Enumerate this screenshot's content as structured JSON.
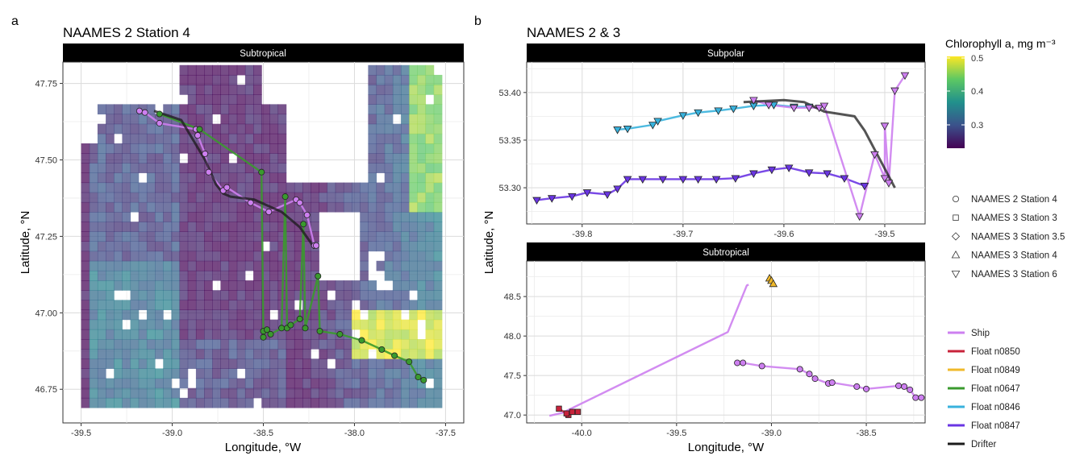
{
  "figure": {
    "panel_a_letter": "a",
    "panel_b_letter": "b",
    "panel_a_title": "NAAMES 2 Station 4",
    "panel_b_title": "NAAMES 2 & 3",
    "strip_a": "Subtropical",
    "strip_b_top": "Subpolar",
    "strip_b_bottom": "Subtropical",
    "xlabel": "Longitude, °W",
    "ylabel": "Latitude, °N"
  },
  "legend": {
    "colorbar_title": "Chlorophyll a, mg m⁻³",
    "colorbar_ticks": [
      "0.5",
      "0.4",
      "0.3"
    ],
    "shape_entries": [
      {
        "label": "NAAMES 2 Station 4",
        "shape": "circle"
      },
      {
        "label": "NAAMES 3 Station 3",
        "shape": "square"
      },
      {
        "label": "NAAMES 3 Station 3.5",
        "shape": "diamond"
      },
      {
        "label": "NAAMES 3 Station 4",
        "shape": "triangle-up"
      },
      {
        "label": "NAAMES 3 Station 6",
        "shape": "triangle-down"
      }
    ],
    "line_entries": [
      {
        "label": "Ship",
        "color": "#cd7ff0"
      },
      {
        "label": "Float n0850",
        "color": "#c8233b"
      },
      {
        "label": "Float n0849",
        "color": "#f0b92a"
      },
      {
        "label": "Float n0647",
        "color": "#3a9a2e"
      },
      {
        "label": "Float n0846",
        "color": "#38b2dd"
      },
      {
        "label": "Float n0847",
        "color": "#6a35e3"
      },
      {
        "label": "Drifter",
        "color": "#1b1b1b"
      }
    ]
  },
  "chart_data": [
    {
      "type": "scatter",
      "panel": "a",
      "title": "NAAMES 2 Station 4",
      "strip": "Subtropical",
      "xlabel": "Longitude, °W",
      "ylabel": "Latitude, °N",
      "xlim": [
        -39.6,
        -37.4
      ],
      "ylim": [
        46.64,
        47.82
      ],
      "xticks": [
        -39.5,
        -39.0,
        -38.5,
        -38.0,
        -37.5
      ],
      "xtick_labels": [
        "-39.5",
        "-39.0",
        "-38.5",
        "-38.0",
        "-37.5"
      ],
      "yticks": [
        46.75,
        47.0,
        47.25,
        47.5,
        47.75
      ],
      "ytick_labels": [
        "46.75",
        "47.00",
        "47.25",
        "47.50",
        "47.75"
      ],
      "background": "chlorophyll a heatmap (approx. 0.25–0.5 mg m⁻³), with cloud gaps",
      "series": [
        {
          "name": "Ship",
          "color": "#cd7ff0",
          "marker": "circle",
          "x": [
            -39.18,
            -39.15,
            -39.07,
            -38.87,
            -38.86,
            -38.82,
            -38.8,
            -38.72,
            -38.7,
            -38.57,
            -38.47,
            -38.32,
            -38.3,
            -38.26,
            -38.22,
            -38.21
          ],
          "y": [
            47.66,
            47.655,
            47.62,
            47.6,
            47.58,
            47.52,
            47.46,
            47.4,
            47.41,
            47.36,
            47.33,
            47.37,
            47.36,
            47.32,
            47.22,
            47.22
          ]
        },
        {
          "name": "Float n0647",
          "color": "#3a9a2e",
          "marker": "circle",
          "x": [
            -39.07,
            -38.85,
            -38.51,
            -38.5,
            -38.5,
            -38.48,
            -38.46,
            -38.4,
            -38.38,
            -38.37,
            -38.35,
            -38.3,
            -38.28,
            -38.27,
            -38.2,
            -38.19,
            -38.08,
            -37.96,
            -37.85,
            -37.78,
            -37.7,
            -37.65,
            -37.62
          ],
          "y": [
            47.65,
            47.6,
            47.46,
            46.94,
            46.92,
            46.945,
            46.93,
            46.95,
            47.38,
            46.95,
            46.96,
            46.98,
            47.29,
            46.95,
            47.12,
            46.94,
            46.93,
            46.91,
            46.88,
            46.86,
            46.84,
            46.79,
            46.78
          ]
        },
        {
          "name": "Drifter",
          "color": "#1b1b1b",
          "x": [
            -39.1,
            -38.95,
            -38.82,
            -38.76,
            -38.72,
            -38.68,
            -38.55,
            -38.4,
            -38.3,
            -38.24,
            -38.22
          ],
          "y": [
            47.66,
            47.63,
            47.5,
            47.42,
            47.39,
            47.38,
            47.37,
            47.33,
            47.28,
            47.23,
            47.21
          ]
        }
      ]
    },
    {
      "type": "scatter",
      "panel": "b-top",
      "title": "NAAMES 2 & 3",
      "strip": "Subpolar",
      "xlim": [
        -39.855,
        -39.46
      ],
      "ylim": [
        53.262,
        53.432
      ],
      "xticks": [
        -39.8,
        -39.7,
        -39.6,
        -39.5
      ],
      "xtick_labels": [
        "-39.8",
        "-39.7",
        "-39.6",
        "-39.5"
      ],
      "yticks": [
        53.3,
        53.35,
        53.4
      ],
      "ytick_labels": [
        "53.30",
        "53.35",
        "53.40"
      ],
      "series": [
        {
          "name": "Float n0846",
          "color": "#38b2dd",
          "marker": "triangle-down",
          "x": [
            -39.765,
            -39.755,
            -39.73,
            -39.725,
            -39.7,
            -39.685,
            -39.665,
            -39.65,
            -39.63,
            -39.61,
            -39.59,
            -39.575
          ],
          "y": [
            53.361,
            53.362,
            53.366,
            53.37,
            53.376,
            53.379,
            53.381,
            53.383,
            53.386,
            53.387,
            53.385,
            53.385
          ]
        },
        {
          "name": "Float n0847",
          "color": "#6a35e3",
          "marker": "triangle-down",
          "x": [
            -39.845,
            -39.83,
            -39.81,
            -39.795,
            -39.775,
            -39.765,
            -39.755,
            -39.74,
            -39.72,
            -39.7,
            -39.685,
            -39.667,
            -39.648,
            -39.63,
            -39.612,
            -39.595,
            -39.575,
            -39.557,
            -39.54,
            -39.52
          ],
          "y": [
            53.287,
            53.289,
            53.291,
            53.295,
            53.293,
            53.299,
            53.309,
            53.309,
            53.309,
            53.309,
            53.309,
            53.309,
            53.31,
            53.315,
            53.319,
            53.321,
            53.316,
            53.315,
            53.31,
            53.302
          ]
        },
        {
          "name": "Ship",
          "color": "#cd7ff0",
          "marker": "triangle-down",
          "x": [
            -39.63,
            -39.615,
            -39.59,
            -39.575,
            -39.565,
            -39.56,
            -39.525,
            -39.51,
            -39.5,
            -39.5,
            -39.496,
            -39.49,
            -39.48
          ],
          "y": [
            53.392,
            53.387,
            53.384,
            53.384,
            53.384,
            53.386,
            53.27,
            53.335,
            53.31,
            53.365,
            53.305,
            53.402,
            53.418
          ]
        },
        {
          "name": "Drifter",
          "color": "#1b1b1b",
          "x": [
            -39.64,
            -39.6,
            -39.58,
            -39.56,
            -39.53,
            -39.52,
            -39.51,
            -39.49
          ],
          "y": [
            53.39,
            53.392,
            53.39,
            53.38,
            53.375,
            53.36,
            53.34,
            53.3
          ]
        }
      ]
    },
    {
      "type": "scatter",
      "panel": "b-bottom",
      "strip": "Subtropical",
      "xlabel": "Longitude, °W",
      "ylabel": "Latitude, °N",
      "xlim": [
        -40.29,
        -38.19
      ],
      "ylim": [
        46.9,
        48.95
      ],
      "xticks": [
        -40.0,
        -39.5,
        -39.0,
        -38.5
      ],
      "xtick_labels": [
        "-40.0",
        "-39.5",
        "-39.0",
        "-38.5"
      ],
      "yticks": [
        47.0,
        47.5,
        48.0,
        48.5
      ],
      "ytick_labels": [
        "47.0",
        "47.5",
        "48.0",
        "48.5"
      ],
      "series": [
        {
          "name": "Ship",
          "color": "#cd7ff0",
          "x": [
            -40.17,
            -40.1,
            -39.23,
            -39.13,
            -39.12
          ],
          "y": [
            46.99,
            47.03,
            48.05,
            48.64,
            48.65
          ]
        },
        {
          "name": "Float n0850",
          "color": "#c8233b",
          "marker": "square",
          "x": [
            -40.07,
            -40.05,
            -40.02,
            -40.08,
            -40.12
          ],
          "y": [
            47.0,
            47.04,
            47.04,
            47.02,
            47.08
          ]
        },
        {
          "name": "Float n0849",
          "color": "#f0b92a",
          "marker": "triangle-up",
          "x": [
            -39.01,
            -39.0,
            -38.99
          ],
          "y": [
            48.73,
            48.7,
            48.66
          ]
        },
        {
          "name": "Ship (NAAMES 2 Station 4)",
          "color": "#cd7ff0",
          "marker": "circle",
          "x": [
            -39.18,
            -39.15,
            -39.05,
            -38.85,
            -38.8,
            -38.77,
            -38.7,
            -38.68,
            -38.55,
            -38.5,
            -38.33,
            -38.3,
            -38.27,
            -38.24,
            -38.21
          ],
          "y": [
            47.66,
            47.66,
            47.62,
            47.58,
            47.52,
            47.46,
            47.4,
            47.41,
            47.36,
            47.33,
            47.37,
            47.36,
            47.32,
            47.22,
            47.22
          ]
        }
      ]
    }
  ]
}
